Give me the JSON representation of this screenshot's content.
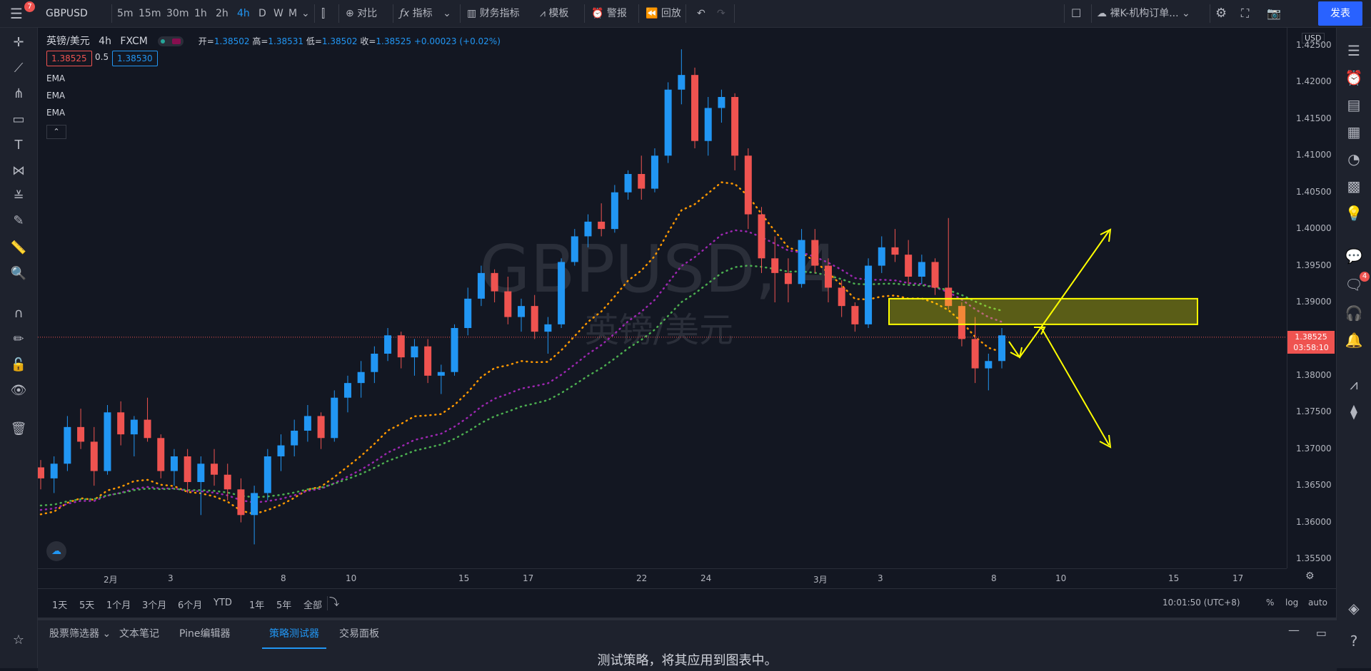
{
  "topbar": {
    "menu_badge": "7",
    "symbol": "GBPUSD",
    "intervals": [
      "5m",
      "15m",
      "30m",
      "1h",
      "2h",
      "4h",
      "D",
      "W",
      "M"
    ],
    "active_interval": "4h",
    "compare_label": "对比",
    "indicators_label": "指标",
    "financials_label": "财务指标",
    "templates_label": "模板",
    "alert_label": "警报",
    "replay_label": "回放",
    "layout_name": "裸K-机构订单...",
    "publish_label": "发表"
  },
  "legend": {
    "title": "英镑/美元",
    "interval": "4h",
    "source": "FXCM",
    "open_label": "开=",
    "open": "1.38502",
    "high_label": "高=",
    "high": "1.38531",
    "low_label": "低=",
    "low": "1.38502",
    "close_label": "收=",
    "close": "1.38525",
    "change": "+0.00023 (+0.02%)",
    "bid": "1.38525",
    "spread": "0.5",
    "ask": "1.38530",
    "indicators": [
      "EMA",
      "EMA",
      "EMA"
    ]
  },
  "watermark": {
    "symbol": "GBPUSD, 4",
    "name": "英镑/美元"
  },
  "price_axis": {
    "currency": "USD",
    "ticks": [
      "1.42500",
      "1.42000",
      "1.41500",
      "1.41000",
      "1.40500",
      "1.40000",
      "1.39500",
      "1.39000",
      "1.38500",
      "1.38000",
      "1.37500",
      "1.37000",
      "1.36500",
      "1.36000",
      "1.35500"
    ],
    "current_price": "1.38525",
    "countdown": "03:58:10"
  },
  "time_axis": {
    "labels": [
      "2月",
      "3",
      "8",
      "10",
      "15",
      "17",
      "22",
      "24",
      "3月",
      "3",
      "8",
      "10",
      "15",
      "17"
    ]
  },
  "range_bar": {
    "ranges": [
      "1天",
      "5天",
      "1个月",
      "3个月",
      "6个月",
      "YTD",
      "1年",
      "5年",
      "全部"
    ],
    "clock": "10:01:50 (UTC+8)",
    "percent": "%",
    "log": "log",
    "auto": "auto"
  },
  "bottom_panel": {
    "tabs": [
      "股票筛选器",
      "文本笔记",
      "Pine编辑器",
      "策略测试器",
      "交易面板"
    ],
    "active_tab": "策略测试器",
    "message": "测试策略，将其应用到图表中。"
  },
  "right_toolbar": {
    "chat_badge": "4"
  },
  "chart_data": {
    "type": "candlestick",
    "symbol": "GBPUSD",
    "interval": "4h",
    "ylim": [
      1.355,
      1.425
    ],
    "x_dates": [
      "2月",
      "3",
      "8",
      "10",
      "15",
      "17",
      "22",
      "24",
      "3月",
      "3",
      "8",
      "10",
      "15",
      "17"
    ],
    "last_price": 1.38525,
    "zone_box": {
      "y_top": 1.3905,
      "y_bottom": 1.387
    },
    "ema_values_at_end": [
      1.3932,
      1.3924,
      1.3905
    ],
    "colors": {
      "up": "#2196f3",
      "down": "#ef5350",
      "ema1": "#ff9800",
      "ema2": "#9c27b0",
      "ema3": "#4caf50",
      "zone": "#ffff00"
    },
    "candles": [
      [
        1.3675,
        1.3685,
        1.3645,
        1.366
      ],
      [
        1.366,
        1.369,
        1.364,
        1.368
      ],
      [
        1.368,
        1.3745,
        1.367,
        1.373
      ],
      [
        1.373,
        1.3755,
        1.37,
        1.371
      ],
      [
        1.371,
        1.373,
        1.365,
        1.367
      ],
      [
        1.367,
        1.376,
        1.3665,
        1.375
      ],
      [
        1.375,
        1.3765,
        1.3705,
        1.372
      ],
      [
        1.372,
        1.3745,
        1.369,
        1.374
      ],
      [
        1.374,
        1.377,
        1.371,
        1.3715
      ],
      [
        1.3715,
        1.372,
        1.366,
        1.367
      ],
      [
        1.367,
        1.37,
        1.365,
        1.369
      ],
      [
        1.369,
        1.37,
        1.364,
        1.3655
      ],
      [
        1.3655,
        1.369,
        1.361,
        1.368
      ],
      [
        1.368,
        1.37,
        1.365,
        1.3665
      ],
      [
        1.3665,
        1.368,
        1.363,
        1.3645
      ],
      [
        1.3645,
        1.366,
        1.36,
        1.361
      ],
      [
        1.361,
        1.365,
        1.357,
        1.364
      ],
      [
        1.364,
        1.37,
        1.363,
        1.369
      ],
      [
        1.369,
        1.372,
        1.367,
        1.3705
      ],
      [
        1.3705,
        1.374,
        1.369,
        1.3725
      ],
      [
        1.3725,
        1.376,
        1.371,
        1.3745
      ],
      [
        1.3745,
        1.375,
        1.37,
        1.3715
      ],
      [
        1.3715,
        1.378,
        1.371,
        1.377
      ],
      [
        1.377,
        1.38,
        1.375,
        1.379
      ],
      [
        1.379,
        1.382,
        1.377,
        1.3805
      ],
      [
        1.3805,
        1.384,
        1.379,
        1.383
      ],
      [
        1.383,
        1.3865,
        1.382,
        1.3855
      ],
      [
        1.3855,
        1.386,
        1.381,
        1.3825
      ],
      [
        1.3825,
        1.385,
        1.38,
        1.384
      ],
      [
        1.384,
        1.385,
        1.379,
        1.38
      ],
      [
        1.38,
        1.3815,
        1.3775,
        1.3805
      ],
      [
        1.3805,
        1.387,
        1.38,
        1.3865
      ],
      [
        1.3865,
        1.392,
        1.3855,
        1.3905
      ],
      [
        1.3905,
        1.395,
        1.3895,
        1.394
      ],
      [
        1.394,
        1.3945,
        1.39,
        1.3915
      ],
      [
        1.3915,
        1.3935,
        1.387,
        1.388
      ],
      [
        1.388,
        1.3905,
        1.386,
        1.3895
      ],
      [
        1.3895,
        1.391,
        1.385,
        1.386
      ],
      [
        1.386,
        1.388,
        1.383,
        1.387
      ],
      [
        1.387,
        1.396,
        1.3865,
        1.3955
      ],
      [
        1.3955,
        1.4,
        1.395,
        1.399
      ],
      [
        1.399,
        1.402,
        1.3975,
        1.401
      ],
      [
        1.401,
        1.4035,
        1.399,
        1.4
      ],
      [
        1.4,
        1.406,
        1.3995,
        1.405
      ],
      [
        1.405,
        1.408,
        1.404,
        1.4075
      ],
      [
        1.4075,
        1.41,
        1.404,
        1.4055
      ],
      [
        1.4055,
        1.411,
        1.405,
        1.41
      ],
      [
        1.41,
        1.42,
        1.409,
        1.419
      ],
      [
        1.419,
        1.4245,
        1.417,
        1.421
      ],
      [
        1.421,
        1.422,
        1.411,
        1.412
      ],
      [
        1.412,
        1.418,
        1.41,
        1.4165
      ],
      [
        1.4165,
        1.419,
        1.4145,
        1.418
      ],
      [
        1.418,
        1.4185,
        1.408,
        1.41
      ],
      [
        1.41,
        1.411,
        1.4,
        1.402
      ],
      [
        1.402,
        1.403,
        1.394,
        1.396
      ],
      [
        1.396,
        1.399,
        1.39,
        1.394
      ],
      [
        1.394,
        1.396,
        1.39,
        1.3925
      ],
      [
        1.3925,
        1.4,
        1.392,
        1.3985
      ],
      [
        1.3985,
        1.4,
        1.394,
        1.395
      ],
      [
        1.395,
        1.396,
        1.39,
        1.392
      ],
      [
        1.392,
        1.393,
        1.388,
        1.3895
      ],
      [
        1.3895,
        1.39,
        1.386,
        1.387
      ],
      [
        1.387,
        1.396,
        1.3865,
        1.395
      ],
      [
        1.395,
        1.399,
        1.394,
        1.3975
      ],
      [
        1.3975,
        1.4,
        1.3955,
        1.3965
      ],
      [
        1.3965,
        1.3985,
        1.3925,
        1.3935
      ],
      [
        1.3935,
        1.3965,
        1.3925,
        1.3955
      ],
      [
        1.3955,
        1.396,
        1.391,
        1.392
      ],
      [
        1.392,
        1.4015,
        1.389,
        1.3895
      ],
      [
        1.3895,
        1.39,
        1.384,
        1.385
      ],
      [
        1.385,
        1.388,
        1.379,
        1.381
      ],
      [
        1.381,
        1.383,
        1.378,
        1.382
      ],
      [
        1.382,
        1.3865,
        1.381,
        1.3855
      ]
    ]
  }
}
